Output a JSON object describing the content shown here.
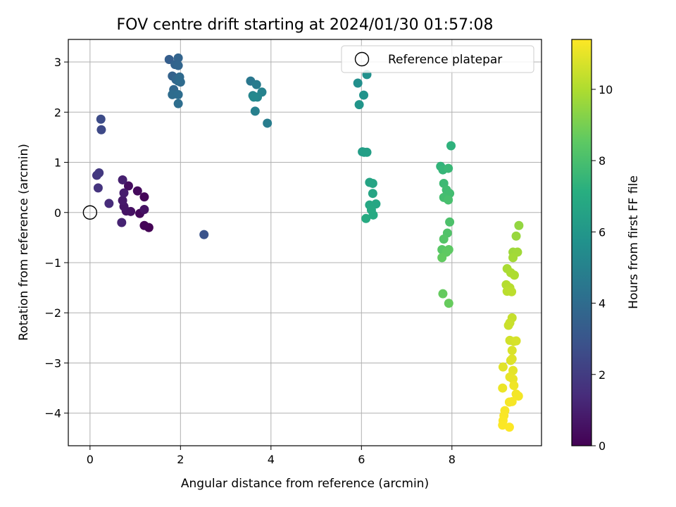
{
  "chart_data": {
    "type": "scatter",
    "title": "FOV centre drift starting at 2024/01/30 01:57:08",
    "xlabel": "Angular distance from reference (arcmin)",
    "ylabel": "Rotation from reference (arcmin)",
    "xlim": [
      -0.48,
      9.98
    ],
    "ylim": [
      -4.65,
      3.45
    ],
    "xticks": [
      0,
      2,
      4,
      6,
      8
    ],
    "yticks": [
      -4,
      -3,
      -2,
      -1,
      0,
      1,
      2,
      3
    ],
    "grid": true,
    "legend": {
      "placement": "top-right",
      "entries": [
        "Reference platepar"
      ]
    },
    "reference": {
      "x": 0,
      "y": 0
    },
    "colorbar": {
      "label": "Hours from first FF file",
      "min": 0,
      "max": 11.4,
      "ticks": [
        0,
        2,
        4,
        6,
        8,
        10
      ],
      "colormap": "viridis"
    },
    "series": [
      {
        "points": [
          [
            1.3,
            -0.3,
            0.05
          ],
          [
            1.2,
            -0.26,
            0.1
          ],
          [
            1.2,
            0.31,
            0.15
          ],
          [
            1.1,
            -0.02,
            0.2
          ],
          [
            1.05,
            0.43,
            0.3
          ],
          [
            0.85,
            0.53,
            0.4
          ],
          [
            0.9,
            0.02,
            0.5
          ],
          [
            1.2,
            0.06,
            0.55
          ],
          [
            0.8,
            0.03,
            0.6
          ],
          [
            0.75,
            0.12,
            0.7
          ],
          [
            0.72,
            0.24,
            0.8
          ],
          [
            0.75,
            0.39,
            0.9
          ],
          [
            0.72,
            0.65,
            1.0
          ],
          [
            0.7,
            -0.2,
            1.1
          ],
          [
            0.42,
            0.18,
            1.4
          ],
          [
            0.18,
            0.49,
            1.7
          ],
          [
            0.15,
            0.74,
            1.8
          ],
          [
            0.2,
            0.79,
            1.9
          ],
          [
            0.25,
            1.65,
            2.5
          ],
          [
            0.24,
            1.86,
            2.6
          ],
          [
            2.52,
            -0.44,
            2.9
          ],
          [
            1.75,
            3.05,
            3.4
          ],
          [
            1.82,
            2.72,
            3.55
          ],
          [
            1.88,
            2.95,
            3.6
          ],
          [
            1.95,
            3.08,
            3.65
          ],
          [
            1.95,
            2.93,
            3.7
          ],
          [
            1.9,
            2.65,
            3.75
          ],
          [
            1.85,
            2.45,
            3.8
          ],
          [
            1.95,
            2.62,
            3.85
          ],
          [
            1.98,
            2.7,
            3.9
          ],
          [
            2.0,
            2.6,
            3.95
          ],
          [
            1.82,
            2.35,
            4.0
          ],
          [
            1.95,
            2.35,
            4.05
          ],
          [
            1.95,
            2.17,
            4.1
          ],
          [
            3.55,
            2.62,
            4.5
          ],
          [
            3.68,
            2.55,
            4.7
          ],
          [
            3.92,
            1.78,
            4.8
          ],
          [
            3.65,
            2.02,
            4.9
          ],
          [
            3.8,
            2.4,
            5.0
          ],
          [
            3.6,
            2.33,
            5.1
          ],
          [
            3.7,
            2.3,
            5.2
          ],
          [
            3.62,
            2.3,
            5.3
          ],
          [
            5.92,
            2.58,
            5.6
          ],
          [
            6.12,
            2.75,
            5.7
          ],
          [
            6.05,
            2.34,
            5.8
          ],
          [
            5.95,
            2.15,
            5.9
          ],
          [
            6.02,
            1.21,
            6.3
          ],
          [
            6.06,
            1.2,
            6.35
          ],
          [
            6.12,
            1.2,
            6.4
          ],
          [
            6.18,
            0.6,
            6.6
          ],
          [
            6.25,
            0.58,
            6.65
          ],
          [
            6.25,
            0.38,
            6.7
          ],
          [
            6.32,
            0.17,
            6.75
          ],
          [
            6.18,
            0.15,
            6.8
          ],
          [
            6.22,
            0.05,
            6.85
          ],
          [
            6.26,
            -0.05,
            6.9
          ],
          [
            6.1,
            -0.12,
            6.95
          ],
          [
            7.98,
            1.33,
            7.3
          ],
          [
            7.75,
            0.92,
            7.4
          ],
          [
            7.8,
            0.85,
            7.5
          ],
          [
            7.92,
            0.88,
            7.6
          ],
          [
            7.82,
            0.58,
            7.7
          ],
          [
            7.88,
            0.45,
            7.8
          ],
          [
            7.95,
            0.38,
            7.85
          ],
          [
            7.82,
            0.3,
            7.9
          ],
          [
            7.92,
            0.25,
            8.0
          ],
          [
            7.95,
            -0.19,
            8.1
          ],
          [
            7.9,
            -0.41,
            8.2
          ],
          [
            7.82,
            -0.53,
            8.3
          ],
          [
            7.78,
            -0.74,
            8.4
          ],
          [
            7.93,
            -0.74,
            8.5
          ],
          [
            7.88,
            -0.79,
            8.55
          ],
          [
            7.78,
            -0.9,
            8.6
          ],
          [
            7.8,
            -1.62,
            8.65
          ],
          [
            7.93,
            -1.81,
            8.7
          ],
          [
            9.48,
            -0.26,
            9.5
          ],
          [
            9.42,
            -0.47,
            9.6
          ],
          [
            9.35,
            -0.79,
            9.7
          ],
          [
            9.45,
            -0.79,
            9.75
          ],
          [
            9.35,
            -0.9,
            9.8
          ],
          [
            9.22,
            -1.12,
            9.9
          ],
          [
            9.3,
            -1.2,
            9.95
          ],
          [
            9.38,
            -1.25,
            10.0
          ],
          [
            9.2,
            -1.44,
            10.1
          ],
          [
            9.28,
            -1.5,
            10.15
          ],
          [
            9.22,
            -1.57,
            10.2
          ],
          [
            9.32,
            -1.58,
            10.25
          ],
          [
            9.33,
            -2.1,
            10.4
          ],
          [
            9.28,
            -2.2,
            10.45
          ],
          [
            9.25,
            -2.25,
            10.5
          ],
          [
            9.28,
            -2.55,
            10.6
          ],
          [
            9.37,
            -2.57,
            10.65
          ],
          [
            9.42,
            -2.56,
            10.7
          ],
          [
            9.33,
            -2.75,
            10.75
          ],
          [
            9.3,
            -2.95,
            10.8
          ],
          [
            9.33,
            -2.92,
            10.85
          ],
          [
            9.13,
            -3.08,
            10.9
          ],
          [
            9.35,
            -3.15,
            10.95
          ],
          [
            9.28,
            -3.28,
            11.0
          ],
          [
            9.35,
            -3.32,
            11.05
          ],
          [
            9.12,
            -3.5,
            11.1
          ],
          [
            9.37,
            -3.45,
            11.15
          ],
          [
            9.42,
            -3.62,
            11.2
          ],
          [
            9.47,
            -3.66,
            11.22
          ],
          [
            9.27,
            -3.78,
            11.25
          ],
          [
            9.33,
            -3.77,
            11.28
          ],
          [
            9.17,
            -3.95,
            11.3
          ],
          [
            9.15,
            -4.05,
            11.32
          ],
          [
            9.13,
            -4.15,
            11.34
          ],
          [
            9.12,
            -4.24,
            11.36
          ],
          [
            9.27,
            -4.28,
            11.38
          ]
        ]
      }
    ]
  }
}
